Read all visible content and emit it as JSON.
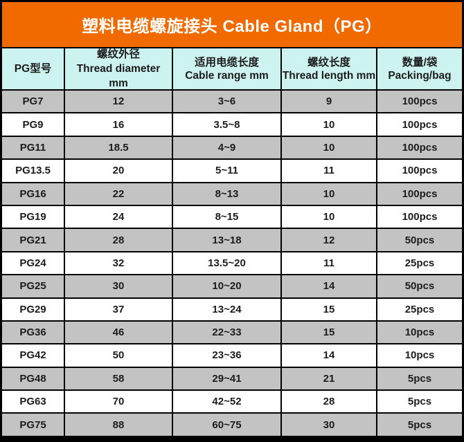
{
  "title": "塑料电缆螺旋接头 Cable Gland（PG）",
  "colors": {
    "banner_bg": "#f06a00",
    "header_bg": "#cdf3f1",
    "row_shade": "#c3c3c3",
    "row_plain": "#ffffff",
    "title_text": "#ffffff",
    "text": "#1c1c1c",
    "border": "#000000"
  },
  "table": {
    "headers": [
      "PG型号",
      "螺纹外径\nThread diameter\nmm",
      "适用电缆长度\nCable range mm",
      "螺纹长度\nThread length mm",
      "数量/袋\nPacking/bag"
    ],
    "column_keys": [
      "model",
      "thread_diameter_mm",
      "cable_range_mm",
      "thread_length_mm",
      "packing_per_bag"
    ],
    "rows": [
      {
        "model": "PG7",
        "thread_diameter_mm": "12",
        "cable_range_mm": "3~6",
        "thread_length_mm": "9",
        "packing_per_bag": "100pcs"
      },
      {
        "model": "PG9",
        "thread_diameter_mm": "16",
        "cable_range_mm": "3.5~8",
        "thread_length_mm": "10",
        "packing_per_bag": "100pcs"
      },
      {
        "model": "PG11",
        "thread_diameter_mm": "18.5",
        "cable_range_mm": "4~9",
        "thread_length_mm": "10",
        "packing_per_bag": "100pcs"
      },
      {
        "model": "PG13.5",
        "thread_diameter_mm": "20",
        "cable_range_mm": "5~11",
        "thread_length_mm": "11",
        "packing_per_bag": "100pcs"
      },
      {
        "model": "PG16",
        "thread_diameter_mm": "22",
        "cable_range_mm": "8~13",
        "thread_length_mm": "10",
        "packing_per_bag": "100pcs"
      },
      {
        "model": "PG19",
        "thread_diameter_mm": "24",
        "cable_range_mm": "8~15",
        "thread_length_mm": "10",
        "packing_per_bag": "100pcs"
      },
      {
        "model": "PG21",
        "thread_diameter_mm": "28",
        "cable_range_mm": "13~18",
        "thread_length_mm": "12",
        "packing_per_bag": "50pcs"
      },
      {
        "model": "PG24",
        "thread_diameter_mm": "32",
        "cable_range_mm": "13.5~20",
        "thread_length_mm": "11",
        "packing_per_bag": "25pcs"
      },
      {
        "model": "PG25",
        "thread_diameter_mm": "30",
        "cable_range_mm": "10~20",
        "thread_length_mm": "14",
        "packing_per_bag": "50pcs"
      },
      {
        "model": "PG29",
        "thread_diameter_mm": "37",
        "cable_range_mm": "13~24",
        "thread_length_mm": "15",
        "packing_per_bag": "25pcs"
      },
      {
        "model": "PG36",
        "thread_diameter_mm": "46",
        "cable_range_mm": "22~33",
        "thread_length_mm": "15",
        "packing_per_bag": "10pcs"
      },
      {
        "model": "PG42",
        "thread_diameter_mm": "50",
        "cable_range_mm": "23~36",
        "thread_length_mm": "14",
        "packing_per_bag": "10pcs"
      },
      {
        "model": "PG48",
        "thread_diameter_mm": "58",
        "cable_range_mm": "29~41",
        "thread_length_mm": "21",
        "packing_per_bag": "5pcs"
      },
      {
        "model": "PG63",
        "thread_diameter_mm": "70",
        "cable_range_mm": "42~52",
        "thread_length_mm": "28",
        "packing_per_bag": "5pcs"
      },
      {
        "model": "PG75",
        "thread_diameter_mm": "88",
        "cable_range_mm": "60~75",
        "thread_length_mm": "30",
        "packing_per_bag": "5pcs"
      }
    ]
  }
}
